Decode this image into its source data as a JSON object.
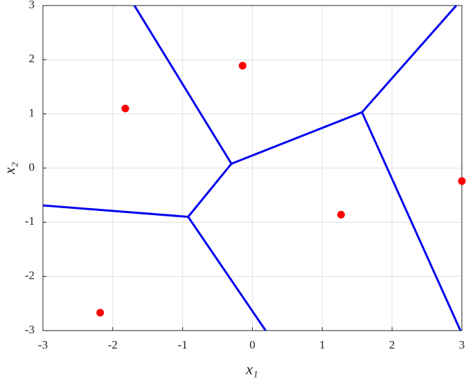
{
  "chart_data": {
    "type": "scatter",
    "xlabel": "x₁",
    "ylabel": "x₂",
    "xlim": [
      -3,
      3
    ],
    "ylim": [
      -3,
      3
    ],
    "xticks": [
      -3,
      -2,
      -1,
      0,
      1,
      2,
      3
    ],
    "yticks": [
      -3,
      -2,
      -1,
      0,
      1,
      2,
      3
    ],
    "grid": true,
    "points": {
      "color": "#ff0000",
      "x": [
        -2.18,
        -1.82,
        -0.14,
        1.27,
        3.0
      ],
      "y": [
        -2.67,
        1.1,
        1.89,
        -0.86,
        -0.24
      ]
    },
    "edges": {
      "color": "#0000ee",
      "x": [
        -1.69,
        -0.3,
        1.57,
        2.92,
        null,
        1.57,
        2.98,
        null,
        -0.3,
        -0.92,
        0.19,
        null,
        -0.92,
        -3
      ],
      "y": [
        3,
        0.08,
        1.03,
        3,
        null,
        1.03,
        -3,
        null,
        0.08,
        -0.9,
        -3,
        null,
        -0.9,
        -0.69
      ]
    }
  }
}
